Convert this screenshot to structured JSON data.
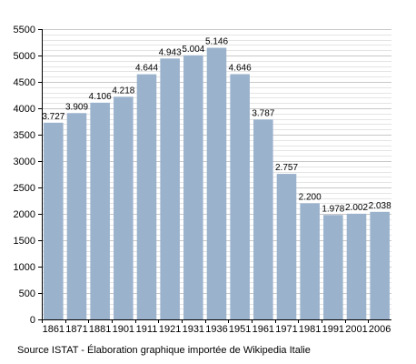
{
  "chart_data": {
    "type": "bar",
    "categories": [
      "1861",
      "1871",
      "1881",
      "1901",
      "1911",
      "1921",
      "1931",
      "1936",
      "1951",
      "1961",
      "1971",
      "1981",
      "1991",
      "2001",
      "2006"
    ],
    "values": [
      3727,
      3909,
      4106,
      4218,
      4644,
      4943,
      5004,
      5146,
      4646,
      3787,
      2757,
      2200,
      1978,
      2002,
      2038
    ],
    "value_labels": [
      "3.727",
      "3.909",
      "4.106",
      "4.218",
      "4.644",
      "4.943",
      "5.004",
      "5.146",
      "4.646",
      "3.787",
      "2.757",
      "2.200",
      "1.978",
      "2.002",
      "2.038"
    ],
    "title": "",
    "xlabel": "",
    "ylabel": "",
    "ylim": [
      0,
      5500
    ],
    "yticks": [
      0,
      500,
      1000,
      1500,
      2000,
      2500,
      3000,
      3500,
      4000,
      4500,
      5000,
      5500
    ],
    "grid": true,
    "legend": "none",
    "colors": {
      "bar": "#9AB2CC",
      "grid": "#C8C8C8",
      "axis": "#000000"
    }
  },
  "footer": {
    "source": "Source ISTAT - Élaboration graphique importée de Wikipedia Italie"
  }
}
